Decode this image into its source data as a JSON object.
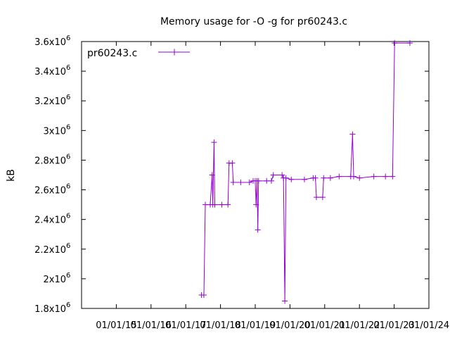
{
  "chart_data": {
    "type": "line",
    "title": "Memory usage for -O -g for pr60243.c",
    "ylabel": "kB",
    "xlabel": "",
    "x_ticks": [
      "01/01/15",
      "01/01/16",
      "01/01/17",
      "01/01/18",
      "01/01/19",
      "01/01/20",
      "01/01/21",
      "01/01/22",
      "01/01/23",
      "01/01/24"
    ],
    "xlim": [
      "2014-01-01",
      "2024-01-01"
    ],
    "ylim": [
      1800000,
      3600000
    ],
    "y_ticks": [
      {
        "base": "1.8x10",
        "exp": "6"
      },
      {
        "base": "2x10",
        "exp": "6"
      },
      {
        "base": "2.2x10",
        "exp": "6"
      },
      {
        "base": "2.4x10",
        "exp": "6"
      },
      {
        "base": "2.6x10",
        "exp": "6"
      },
      {
        "base": "2.8x10",
        "exp": "6"
      },
      {
        "base": "3x10",
        "exp": "6"
      },
      {
        "base": "3.2x10",
        "exp": "6"
      },
      {
        "base": "3.4x10",
        "exp": "6"
      },
      {
        "base": "3.6x10",
        "exp": "6"
      }
    ],
    "grid": false,
    "legend_position": "top-left",
    "series": [
      {
        "name": "pr60243.c",
        "color": "#9400d3",
        "points": [
          [
            "2017-06-15",
            1890000
          ],
          [
            "2017-07-10",
            1890000
          ],
          [
            "2017-07-25",
            2500000
          ],
          [
            "2017-09-15",
            2500000
          ],
          [
            "2017-10-05",
            2700000
          ],
          [
            "2017-10-12",
            2500000
          ],
          [
            "2017-10-25",
            2920000
          ],
          [
            "2017-11-02",
            2500000
          ],
          [
            "2018-01-15",
            2500000
          ],
          [
            "2018-03-20",
            2500000
          ],
          [
            "2018-04-01",
            2780000
          ],
          [
            "2018-05-05",
            2780000
          ],
          [
            "2018-05-15",
            2650000
          ],
          [
            "2018-08-01",
            2650000
          ],
          [
            "2018-11-01",
            2650000
          ],
          [
            "2018-12-10",
            2660000
          ],
          [
            "2019-01-01",
            2660000
          ],
          [
            "2019-01-10",
            2500000
          ],
          [
            "2019-01-20",
            2660000
          ],
          [
            "2019-01-28",
            2330000
          ],
          [
            "2019-02-05",
            2660000
          ],
          [
            "2019-05-01",
            2660000
          ],
          [
            "2019-06-20",
            2660000
          ],
          [
            "2019-07-10",
            2700000
          ],
          [
            "2019-10-10",
            2700000
          ],
          [
            "2019-10-25",
            2680000
          ],
          [
            "2019-11-08",
            1850000
          ],
          [
            "2019-11-20",
            2680000
          ],
          [
            "2020-01-15",
            2670000
          ],
          [
            "2020-06-01",
            2670000
          ],
          [
            "2020-09-01",
            2680000
          ],
          [
            "2020-09-25",
            2680000
          ],
          [
            "2020-10-05",
            2550000
          ],
          [
            "2020-12-10",
            2550000
          ],
          [
            "2020-12-20",
            2680000
          ],
          [
            "2021-03-01",
            2680000
          ],
          [
            "2021-06-01",
            2690000
          ],
          [
            "2021-10-01",
            2690000
          ],
          [
            "2021-10-20",
            2975000
          ],
          [
            "2021-11-01",
            2690000
          ],
          [
            "2022-01-01",
            2680000
          ],
          [
            "2022-06-01",
            2690000
          ],
          [
            "2022-10-01",
            2690000
          ],
          [
            "2022-12-15",
            2690000
          ],
          [
            "2023-01-05",
            3590000
          ],
          [
            "2023-06-15",
            3590000
          ]
        ]
      }
    ]
  }
}
